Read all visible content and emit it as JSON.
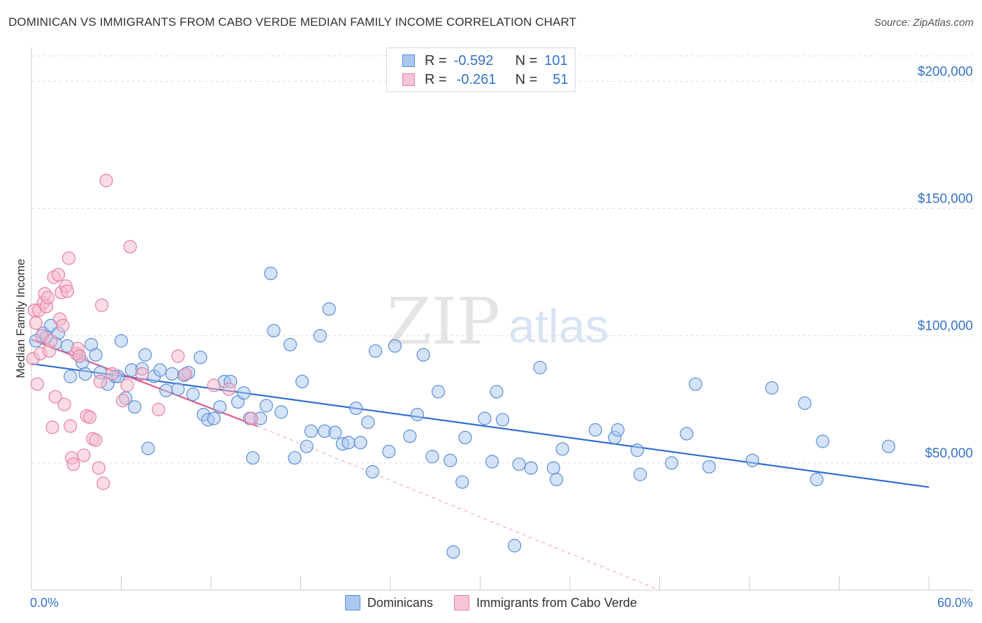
{
  "title": "DOMINICAN VS IMMIGRANTS FROM CABO VERDE MEDIAN FAMILY INCOME CORRELATION CHART",
  "source": "Source: ZipAtlas.com",
  "watermark": {
    "zip": "ZIP",
    "atlas": "atlas"
  },
  "colors": {
    "blue_fill": "#a9c8ef",
    "blue_stroke": "#5b8ed6",
    "blue_line": "#2f6fd0",
    "pink_fill": "#f6b9cb",
    "pink_stroke": "#e67fa0",
    "pink_line": "#e05a8a",
    "axis_label": "#3472c8",
    "grid": "#dddddd"
  },
  "stats": {
    "rows": [
      {
        "r_label": "R =",
        "r_value": "-0.592",
        "n_label": "N =",
        "n_value": "101"
      },
      {
        "r_label": "R =",
        "r_value": "-0.261",
        "n_label": "N =",
        "n_value": "51"
      }
    ]
  },
  "chart_data": {
    "type": "scatter",
    "title": "DOMINICAN VS IMMIGRANTS FROM CABO VERDE MEDIAN FAMILY INCOME CORRELATION CHART",
    "xlabel": "",
    "ylabel": "Median Family Income",
    "xlim": [
      0,
      60
    ],
    "ylim": [
      0,
      210000
    ],
    "x_tick_labels": [
      "0.0%",
      "60.0%"
    ],
    "y_ticks": [
      50000,
      100000,
      150000,
      200000
    ],
    "y_tick_labels": [
      "$50,000",
      "$100,000",
      "$150,000",
      "$200,000"
    ],
    "grid": true,
    "legend_position": "bottom",
    "series": [
      {
        "name": "Dominicans",
        "color": "#5b8ed6",
        "trend": {
          "x": [
            0,
            60
          ],
          "y": [
            89000,
            40500
          ]
        },
        "points": [
          [
            0.3,
            98000
          ],
          [
            0.8,
            101000
          ],
          [
            1.0,
            99500
          ],
          [
            1.3,
            104000
          ],
          [
            1.6,
            97000
          ],
          [
            1.8,
            101000
          ],
          [
            2.4,
            96000
          ],
          [
            2.6,
            84000
          ],
          [
            3.2,
            92000
          ],
          [
            3.4,
            89500
          ],
          [
            3.6,
            85000
          ],
          [
            4.0,
            96500
          ],
          [
            4.3,
            92500
          ],
          [
            4.6,
            85500
          ],
          [
            5.1,
            81000
          ],
          [
            5.6,
            84000
          ],
          [
            5.8,
            84000
          ],
          [
            6.0,
            98000
          ],
          [
            6.3,
            75500
          ],
          [
            6.7,
            86500
          ],
          [
            6.9,
            72000
          ],
          [
            7.4,
            87000
          ],
          [
            7.6,
            92500
          ],
          [
            7.8,
            55700
          ],
          [
            8.2,
            84000
          ],
          [
            8.6,
            86500
          ],
          [
            9.0,
            78500
          ],
          [
            9.4,
            85000
          ],
          [
            9.8,
            79000
          ],
          [
            10.2,
            84500
          ],
          [
            10.5,
            85500
          ],
          [
            10.8,
            77000
          ],
          [
            11.3,
            91500
          ],
          [
            11.5,
            69000
          ],
          [
            11.8,
            67000
          ],
          [
            12.2,
            67500
          ],
          [
            12.6,
            72000
          ],
          [
            12.9,
            82000
          ],
          [
            13.3,
            82000
          ],
          [
            13.8,
            74000
          ],
          [
            14.2,
            77500
          ],
          [
            14.6,
            67500
          ],
          [
            14.8,
            52000
          ],
          [
            15.3,
            67500
          ],
          [
            15.7,
            72500
          ],
          [
            16.0,
            124500
          ],
          [
            16.2,
            102000
          ],
          [
            16.7,
            70000
          ],
          [
            17.3,
            96500
          ],
          [
            17.6,
            52000
          ],
          [
            18.1,
            82000
          ],
          [
            18.4,
            56500
          ],
          [
            18.7,
            62500
          ],
          [
            19.3,
            100000
          ],
          [
            19.6,
            62500
          ],
          [
            19.9,
            110500
          ],
          [
            20.3,
            62000
          ],
          [
            20.8,
            57500
          ],
          [
            21.2,
            58000
          ],
          [
            21.7,
            71500
          ],
          [
            22.0,
            58000
          ],
          [
            22.5,
            66000
          ],
          [
            22.8,
            46500
          ],
          [
            23.0,
            94000
          ],
          [
            23.9,
            54500
          ],
          [
            24.3,
            96000
          ],
          [
            25.3,
            60500
          ],
          [
            25.8,
            69000
          ],
          [
            26.2,
            92500
          ],
          [
            26.8,
            52500
          ],
          [
            27.2,
            78000
          ],
          [
            28.0,
            51000
          ],
          [
            28.2,
            15000
          ],
          [
            28.8,
            42500
          ],
          [
            29.0,
            60000
          ],
          [
            30.3,
            67500
          ],
          [
            30.8,
            50500
          ],
          [
            31.1,
            78000
          ],
          [
            31.5,
            67000
          ],
          [
            32.3,
            17500
          ],
          [
            32.6,
            49500
          ],
          [
            33.4,
            48000
          ],
          [
            34.0,
            87500
          ],
          [
            34.9,
            48000
          ],
          [
            35.1,
            43500
          ],
          [
            35.5,
            55500
          ],
          [
            37.7,
            63000
          ],
          [
            39.0,
            60000
          ],
          [
            39.2,
            63000
          ],
          [
            40.5,
            55000
          ],
          [
            40.7,
            45500
          ],
          [
            42.8,
            50000
          ],
          [
            43.8,
            61500
          ],
          [
            44.4,
            81000
          ],
          [
            45.3,
            48500
          ],
          [
            48.2,
            51000
          ],
          [
            49.5,
            79500
          ],
          [
            51.7,
            73500
          ],
          [
            52.5,
            43500
          ],
          [
            52.9,
            58500
          ],
          [
            57.3,
            56500
          ]
        ]
      },
      {
        "name": "Immigrants from Cabo Verde",
        "color": "#e67fa0",
        "trend": {
          "x": [
            0,
            15.1
          ],
          "y": [
            98500,
            64500
          ]
        },
        "trend_extension": {
          "x": [
            15.1,
            42.0
          ],
          "y": [
            64500,
            0
          ]
        },
        "points": [
          [
            0.1,
            91000
          ],
          [
            0.2,
            110000
          ],
          [
            0.3,
            105000
          ],
          [
            0.4,
            81000
          ],
          [
            0.5,
            110000
          ],
          [
            0.6,
            93000
          ],
          [
            0.7,
            100000
          ],
          [
            0.8,
            113000
          ],
          [
            0.9,
            116500
          ],
          [
            1.0,
            111500
          ],
          [
            1.1,
            115000
          ],
          [
            1.2,
            94000
          ],
          [
            1.3,
            98000
          ],
          [
            1.4,
            64000
          ],
          [
            1.5,
            123000
          ],
          [
            1.6,
            76000
          ],
          [
            1.8,
            124000
          ],
          [
            1.9,
            106500
          ],
          [
            2.0,
            117000
          ],
          [
            2.1,
            104000
          ],
          [
            2.2,
            73000
          ],
          [
            2.3,
            119500
          ],
          [
            2.4,
            117500
          ],
          [
            2.5,
            130500
          ],
          [
            2.6,
            64500
          ],
          [
            2.7,
            52000
          ],
          [
            2.8,
            49500
          ],
          [
            3.0,
            93000
          ],
          [
            3.1,
            95000
          ],
          [
            3.2,
            92000
          ],
          [
            3.5,
            53000
          ],
          [
            3.7,
            68500
          ],
          [
            3.9,
            68000
          ],
          [
            4.1,
            59500
          ],
          [
            4.3,
            59000
          ],
          [
            4.5,
            48000
          ],
          [
            4.6,
            82000
          ],
          [
            4.7,
            112000
          ],
          [
            4.8,
            42000
          ],
          [
            5.0,
            161000
          ],
          [
            5.4,
            85000
          ],
          [
            6.1,
            74500
          ],
          [
            6.4,
            80500
          ],
          [
            6.6,
            135000
          ],
          [
            7.4,
            85000
          ],
          [
            8.5,
            71000
          ],
          [
            9.8,
            92000
          ],
          [
            10.3,
            85000
          ],
          [
            12.2,
            80500
          ],
          [
            13.2,
            79000
          ],
          [
            14.7,
            67500
          ]
        ]
      }
    ]
  },
  "legend": {
    "items": [
      {
        "label": "Dominicans"
      },
      {
        "label": "Immigrants from Cabo Verde"
      }
    ]
  }
}
